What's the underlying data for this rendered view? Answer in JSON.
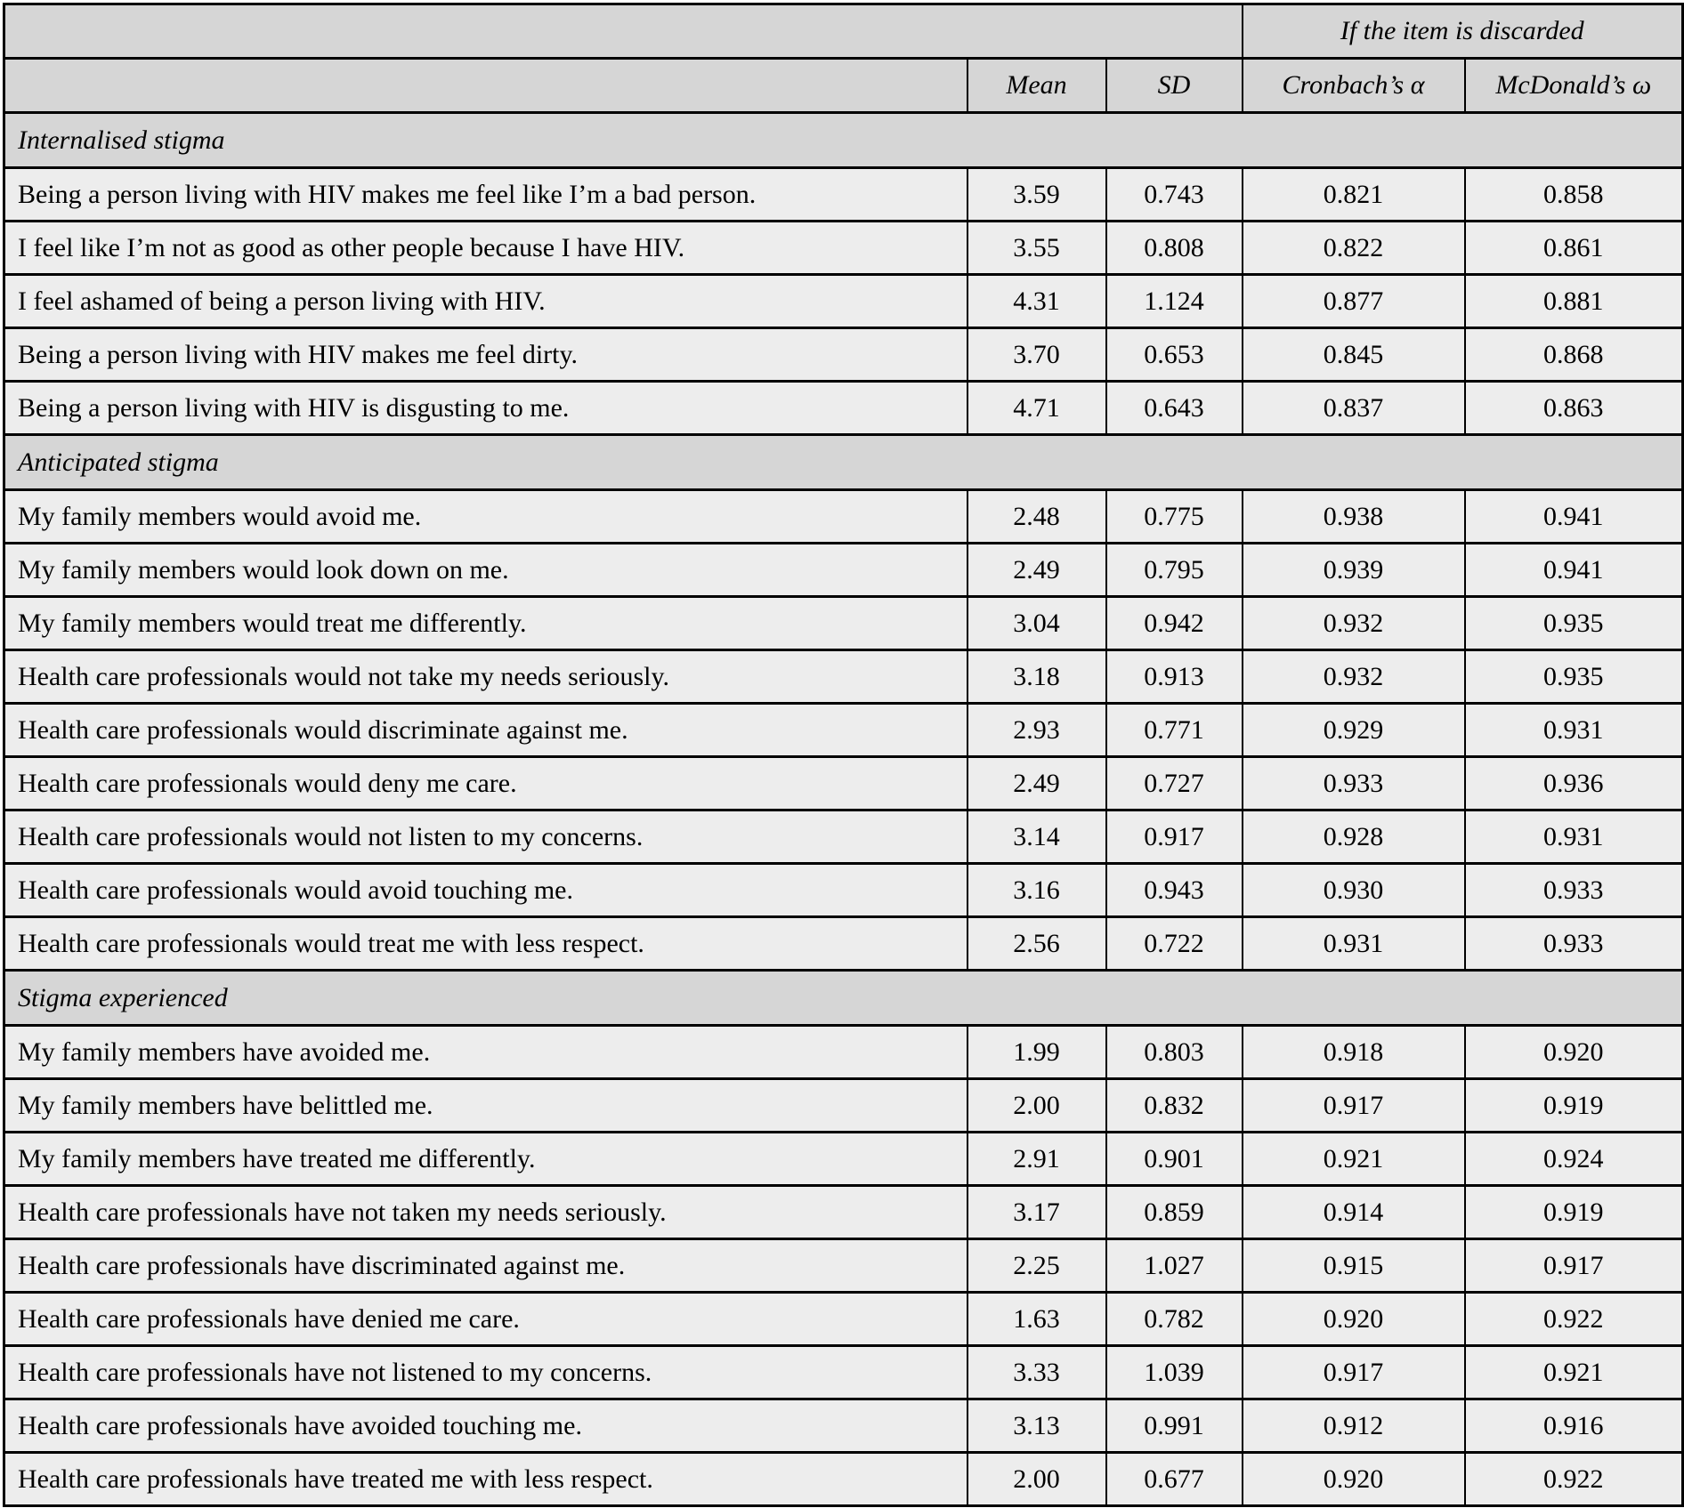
{
  "page": {
    "background": "#ffffff"
  },
  "table": {
    "discarded_header": "If the item is discarded",
    "columns": [
      "Mean",
      "SD",
      "Cronbach’s α",
      "McDonald’s ω"
    ],
    "colors": {
      "header_bg": "#d6d6d6",
      "row_bg": "#ededed",
      "border": "#000000",
      "text": "#000000"
    },
    "sections": [
      {
        "label": "Internalised stigma",
        "rows": [
          {
            "item": "Being a person living with HIV makes me feel like I’m a bad person.",
            "mean": "3.59",
            "sd": "0.743",
            "alpha": "0.821",
            "omega": "0.858"
          },
          {
            "item": "I feel like I’m not as good as other people because I have HIV.",
            "mean": "3.55",
            "sd": "0.808",
            "alpha": "0.822",
            "omega": "0.861"
          },
          {
            "item": "I feel ashamed of being a person living with HIV.",
            "mean": "4.31",
            "sd": "1.124",
            "alpha": "0.877",
            "omega": "0.881"
          },
          {
            "item": "Being a person living with HIV makes me feel dirty.",
            "mean": "3.70",
            "sd": "0.653",
            "alpha": "0.845",
            "omega": "0.868"
          },
          {
            "item": "Being a person living with HIV is disgusting to me.",
            "mean": "4.71",
            "sd": "0.643",
            "alpha": "0.837",
            "omega": "0.863"
          }
        ]
      },
      {
        "label": "Anticipated stigma",
        "rows": [
          {
            "item": "My family members would avoid me.",
            "mean": "2.48",
            "sd": "0.775",
            "alpha": "0.938",
            "omega": "0.941"
          },
          {
            "item": "My family members would look down on me.",
            "mean": "2.49",
            "sd": "0.795",
            "alpha": "0.939",
            "omega": "0.941"
          },
          {
            "item": "My family members would treat me differently.",
            "mean": "3.04",
            "sd": "0.942",
            "alpha": "0.932",
            "omega": "0.935"
          },
          {
            "item": "Health care professionals would not take my needs seriously.",
            "mean": "3.18",
            "sd": "0.913",
            "alpha": "0.932",
            "omega": "0.935"
          },
          {
            "item": "Health care professionals would discriminate against me.",
            "mean": "2.93",
            "sd": "0.771",
            "alpha": "0.929",
            "omega": "0.931"
          },
          {
            "item": "Health care professionals would deny me care.",
            "mean": "2.49",
            "sd": "0.727",
            "alpha": "0.933",
            "omega": "0.936"
          },
          {
            "item": "Health care professionals would not listen to my concerns.",
            "mean": "3.14",
            "sd": "0.917",
            "alpha": "0.928",
            "omega": "0.931"
          },
          {
            "item": "Health care professionals would avoid touching me.",
            "mean": "3.16",
            "sd": "0.943",
            "alpha": "0.930",
            "omega": "0.933"
          },
          {
            "item": "Health care professionals would treat me with less respect.",
            "mean": "2.56",
            "sd": "0.722",
            "alpha": "0.931",
            "omega": "0.933"
          }
        ]
      },
      {
        "label": "Stigma experienced",
        "rows": [
          {
            "item": "My family members have avoided me.",
            "mean": "1.99",
            "sd": "0.803",
            "alpha": "0.918",
            "omega": "0.920"
          },
          {
            "item": "My family members have belittled me.",
            "mean": "2.00",
            "sd": "0.832",
            "alpha": "0.917",
            "omega": "0.919"
          },
          {
            "item": "My family members have treated me differently.",
            "mean": "2.91",
            "sd": "0.901",
            "alpha": "0.921",
            "omega": "0.924"
          },
          {
            "item": "Health care professionals have not taken my needs seriously.",
            "mean": "3.17",
            "sd": "0.859",
            "alpha": "0.914",
            "omega": "0.919"
          },
          {
            "item": "Health care professionals have discriminated against me.",
            "mean": "2.25",
            "sd": "1.027",
            "alpha": "0.915",
            "omega": "0.917"
          },
          {
            "item": "Health care professionals have denied me care.",
            "mean": "1.63",
            "sd": "0.782",
            "alpha": "0.920",
            "omega": "0.922"
          },
          {
            "item": "Health care professionals have not listened to my concerns.",
            "mean": "3.33",
            "sd": "1.039",
            "alpha": "0.917",
            "omega": "0.921"
          },
          {
            "item": "Health care professionals have avoided touching me.",
            "mean": "3.13",
            "sd": "0.991",
            "alpha": "0.912",
            "omega": "0.916"
          },
          {
            "item": "Health care professionals have treated me with less respect.",
            "mean": "2.00",
            "sd": "0.677",
            "alpha": "0.920",
            "omega": "0.922"
          }
        ]
      }
    ]
  }
}
